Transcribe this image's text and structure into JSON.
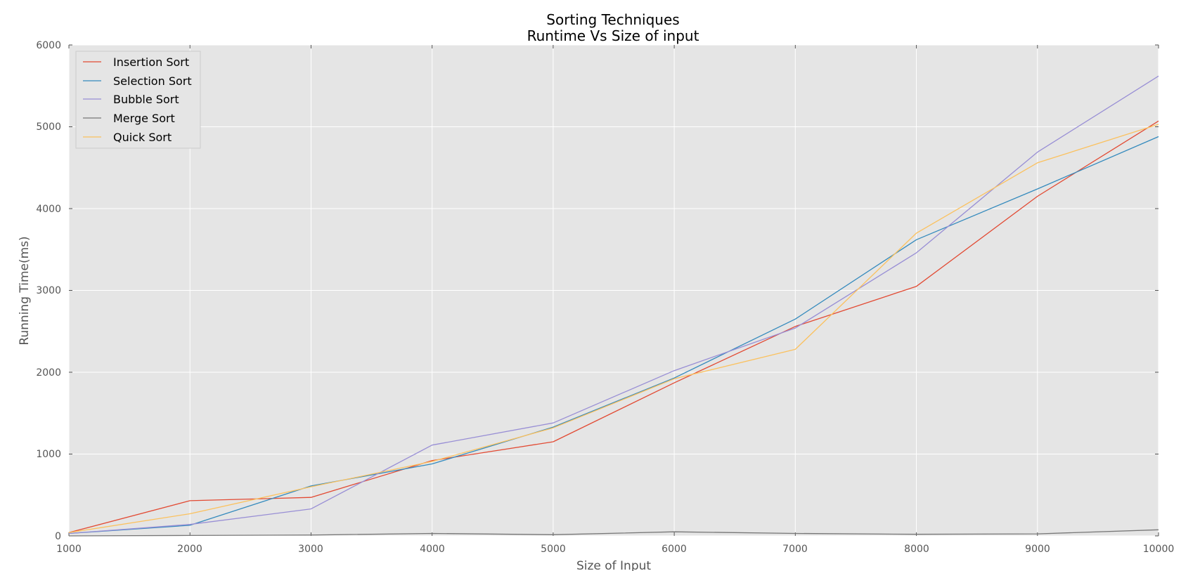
{
  "chart_data": {
    "type": "line",
    "title": "Sorting Techniques",
    "subtitle": "Runtime Vs Size of input",
    "xlabel": "Size of Input",
    "ylabel": "Running Time(ms)",
    "xlim": [
      1000,
      10000
    ],
    "ylim": [
      0,
      6000
    ],
    "x_ticks": [
      "1000",
      "2000",
      "3000",
      "4000",
      "5000",
      "6000",
      "7000",
      "8000",
      "9000",
      "10000"
    ],
    "y_ticks": [
      "0",
      "1000",
      "2000",
      "3000",
      "4000",
      "5000",
      "6000"
    ],
    "grid": true,
    "legend_position": "top-left",
    "x": [
      1000,
      2000,
      3000,
      4000,
      5000,
      6000,
      7000,
      8000,
      9000,
      10000
    ],
    "series": [
      {
        "name": "Insertion Sort",
        "color": "#e24a33",
        "values": [
          40,
          430,
          470,
          920,
          1150,
          1870,
          2560,
          3050,
          4150,
          5070
        ]
      },
      {
        "name": "Selection Sort",
        "color": "#348abd",
        "values": [
          30,
          130,
          610,
          880,
          1330,
          1930,
          2650,
          3620,
          4240,
          4880
        ]
      },
      {
        "name": "Bubble Sort",
        "color": "#988ed5",
        "values": [
          30,
          140,
          330,
          1110,
          1380,
          2020,
          2540,
          3460,
          4690,
          5620
        ]
      },
      {
        "name": "Merge Sort",
        "color": "#777777",
        "values": [
          0,
          5,
          10,
          30,
          15,
          50,
          30,
          20,
          25,
          75
        ]
      },
      {
        "name": "Quick Sort",
        "color": "#fbc15e",
        "values": [
          40,
          270,
          600,
          910,
          1320,
          1920,
          2280,
          3700,
          4560,
          5030
        ]
      }
    ]
  }
}
